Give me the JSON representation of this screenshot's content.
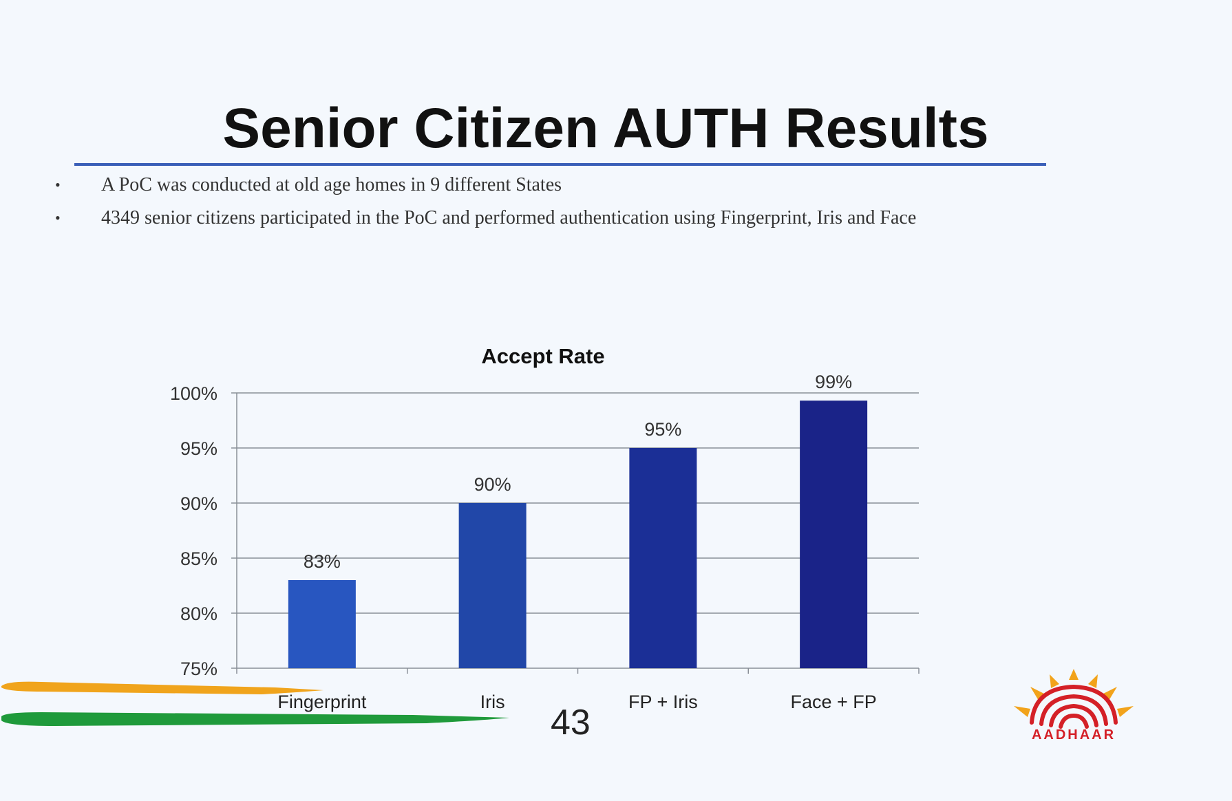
{
  "slide": {
    "title": "Senior Citizen AUTH Results",
    "bullets": [
      "A PoC was conducted  at old age homes in 9 different States",
      "4349 senior citizens participated in the PoC and performed authentication using Fingerprint, Iris and Face"
    ],
    "page_number": "43",
    "logo_text": "AADHAAR"
  },
  "chart_data": {
    "type": "bar",
    "title": "Accept Rate",
    "categories": [
      "Fingerprint",
      "Iris",
      "FP + Iris",
      "Face + FP"
    ],
    "values": [
      83,
      90,
      95,
      99.3
    ],
    "data_labels": [
      "83%",
      "90%",
      "95%",
      "99%"
    ],
    "ylim": [
      75,
      100
    ],
    "yticks": [
      75,
      80,
      85,
      90,
      95,
      100
    ],
    "ytick_labels": [
      "75%",
      "80%",
      "85%",
      "90%",
      "95%",
      "100%"
    ],
    "xlabel": "",
    "ylabel": "",
    "grid": true,
    "legend": "none",
    "bar_colors": [
      "#2856c0",
      "#2147a8",
      "#1b2f96",
      "#1a2388"
    ]
  },
  "colors": {
    "background": "#f4f8fd",
    "title_rule": "#3a5fb8",
    "gridline": "#8a8f98",
    "logo_red": "#d42027",
    "logo_orange": "#f2a31b",
    "swoosh_orange": "#f0a41c",
    "swoosh_green": "#1f9a3b"
  }
}
